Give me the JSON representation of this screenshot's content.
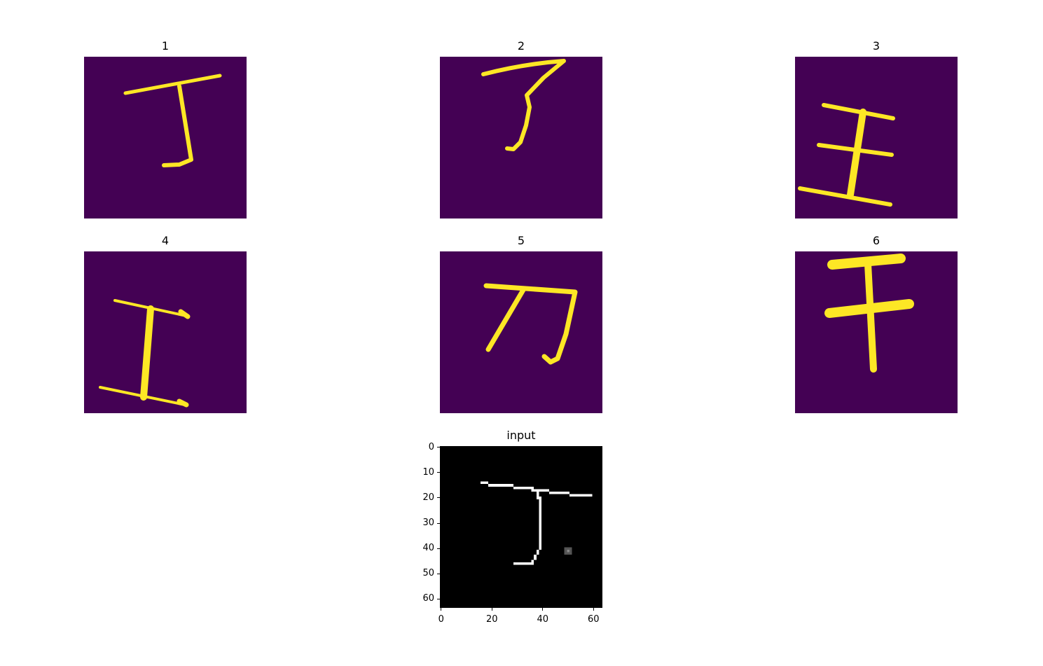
{
  "figure": {
    "background": "#ffffff",
    "panels": [
      {
        "title": "1",
        "colormap": "viridis",
        "background": "#440154",
        "stroke": "#fde725",
        "glyph": "ding-stroke-icon"
      },
      {
        "title": "2",
        "colormap": "viridis",
        "background": "#440154",
        "stroke": "#fde725",
        "glyph": "le-stroke-icon"
      },
      {
        "title": "3",
        "colormap": "viridis",
        "background": "#440154",
        "stroke": "#fde725",
        "glyph": "wang-stroke-icon"
      },
      {
        "title": "4",
        "colormap": "viridis",
        "background": "#440154",
        "stroke": "#fde725",
        "glyph": "gong-stroke-icon"
      },
      {
        "title": "5",
        "colormap": "viridis",
        "background": "#440154",
        "stroke": "#fde725",
        "glyph": "dao-stroke-icon"
      },
      {
        "title": "6",
        "colormap": "viridis",
        "background": "#440154",
        "stroke": "#fde725",
        "glyph": "gan-stroke-icon"
      }
    ],
    "input_panel": {
      "title": "input",
      "colormap": "gray",
      "background": "#000000",
      "stroke": "#ffffff",
      "glyph": "ding-bitmap-icon"
    }
  },
  "chart_data": {
    "type": "heatmap",
    "image_size": [
      64,
      64
    ],
    "x_ticks": [
      "0",
      "20",
      "40",
      "60"
    ],
    "y_ticks": [
      "0",
      "10",
      "20",
      "30",
      "40",
      "50",
      "60"
    ],
    "xlim": [
      -0.5,
      63.5
    ],
    "ylim": [
      63.5,
      -0.5
    ],
    "grid": false
  }
}
